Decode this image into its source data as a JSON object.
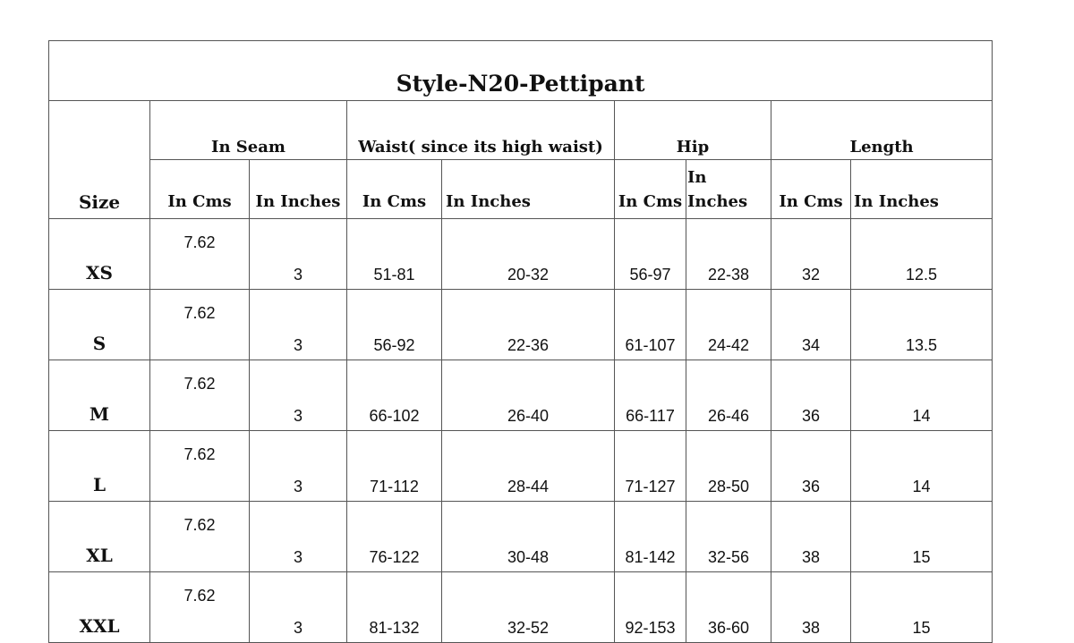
{
  "title": "Style-N20-Pettipant",
  "headers": {
    "size": "Size",
    "groups": [
      "In Seam",
      "Waist( since its high waist)",
      "Hip",
      "Length"
    ],
    "sub": [
      "In Cms",
      "In Inches",
      "In Cms",
      "In Inches",
      "In Cms",
      "In Inches",
      "In Cms",
      "In Inches"
    ]
  },
  "rows": [
    {
      "size": "XS",
      "values": [
        "7.62",
        "3",
        "51-81",
        "20-32",
        "56-97",
        "22-38",
        "32",
        "12.5"
      ]
    },
    {
      "size": "S",
      "values": [
        "7.62",
        "3",
        "56-92",
        "22-36",
        "61-107",
        "24-42",
        "34",
        "13.5"
      ]
    },
    {
      "size": "M",
      "values": [
        "7.62",
        "3",
        "66-102",
        "26-40",
        "66-117",
        "26-46",
        "36",
        "14"
      ]
    },
    {
      "size": "L",
      "values": [
        "7.62",
        "3",
        "71-112",
        "28-44",
        "71-127",
        "28-50",
        "36",
        "14"
      ]
    },
    {
      "size": "XL",
      "values": [
        "7.62",
        "3",
        "76-122",
        "30-48",
        "81-142",
        "32-56",
        "38",
        "15"
      ]
    },
    {
      "size": "XXL",
      "values": [
        "7.62",
        "3",
        "81-132",
        "32-52",
        "92-153",
        "36-60",
        "38",
        "15"
      ]
    }
  ]
}
